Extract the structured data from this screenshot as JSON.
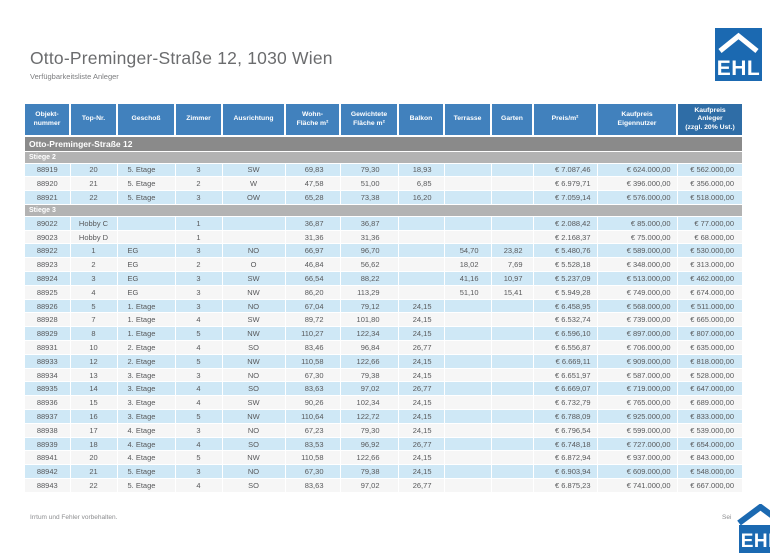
{
  "page": {
    "title": "Otto-Preminger-Straße 12, 1030 Wien",
    "subtitle": "Verfügbarkeitsliste Anleger",
    "footer_left": "Irrtum und Fehler vorbehalten.",
    "footer_right": "Sei",
    "logo_text": "EHL"
  },
  "colors": {
    "header_blue": "#4181bd",
    "header_blue_dark": "#2f6da6",
    "row_blue": "#cfe8f6",
    "row_plain": "#f6f6f6",
    "section_gray": "#8a8a8a",
    "group_gray": "#b3b3b3",
    "logo_blue": "#1b69b1",
    "text_gray": "#58595b"
  },
  "table": {
    "section_title": "Otto-Preminger-Straße 12",
    "columns": [
      [
        "Objekt-",
        "nummer"
      ],
      [
        "Top-Nr."
      ],
      [
        "Geschoß"
      ],
      [
        "Zimmer"
      ],
      [
        "Ausrichtung"
      ],
      [
        "Wohn-",
        "Fläche m²"
      ],
      [
        "Gewichtete",
        "Fläche m²"
      ],
      [
        "Balkon"
      ],
      [
        "Terrasse"
      ],
      [
        "Garten"
      ],
      [
        "Preis/m²"
      ],
      [
        "Kaufpreis",
        "Eigennutzer"
      ],
      [
        "Kaufpreis",
        "Anleger",
        "(zzgl. 20% Ust.)"
      ]
    ],
    "groups": [
      {
        "label": "Stiege 2",
        "rows": [
          [
            "88919",
            "20",
            "5. Etage",
            "3",
            "SW",
            "69,83",
            "79,30",
            "18,93",
            "",
            "",
            "€ 7.087,46",
            "€ 624.000,00",
            "€ 562.000,00"
          ],
          [
            "88920",
            "21",
            "5. Etage",
            "2",
            "W",
            "47,58",
            "51,00",
            "6,85",
            "",
            "",
            "€ 6.979,71",
            "€ 396.000,00",
            "€ 356.000,00"
          ],
          [
            "88921",
            "22",
            "5. Etage",
            "3",
            "OW",
            "65,28",
            "73,38",
            "16,20",
            "",
            "",
            "€ 7.059,14",
            "€ 576.000,00",
            "€ 518.000,00"
          ]
        ]
      },
      {
        "label": "Stiege 3",
        "rows": [
          [
            "89022",
            "Hobby C",
            "",
            "1",
            "",
            "36,87",
            "36,87",
            "",
            "",
            "",
            "€ 2.088,42",
            "€ 85.000,00",
            "€ 77.000,00"
          ],
          [
            "89023",
            "Hobby D",
            "",
            "1",
            "",
            "31,36",
            "31,36",
            "",
            "",
            "",
            "€ 2.168,37",
            "€ 75.000,00",
            "€ 68.000,00"
          ],
          [
            "88922",
            "1",
            "EG",
            "3",
            "NO",
            "66,97",
            "96,70",
            "",
            "54,70",
            "23,82",
            "€ 5.480,76",
            "€ 589.000,00",
            "€ 530.000,00"
          ],
          [
            "88923",
            "2",
            "EG",
            "2",
            "O",
            "46,84",
            "56,62",
            "",
            "18,02",
            "7,69",
            "€ 5.528,18",
            "€ 348.000,00",
            "€ 313.000,00"
          ],
          [
            "88924",
            "3",
            "EG",
            "3",
            "SW",
            "66,54",
            "88,22",
            "",
            "41,16",
            "10,97",
            "€ 5.237,09",
            "€ 513.000,00",
            "€ 462.000,00"
          ],
          [
            "88925",
            "4",
            "EG",
            "3",
            "NW",
            "86,20",
            "113,29",
            "",
            "51,10",
            "15,41",
            "€ 5.949,28",
            "€ 749.000,00",
            "€ 674.000,00"
          ],
          [
            "88926",
            "5",
            "1. Etage",
            "3",
            "NO",
            "67,04",
            "79,12",
            "24,15",
            "",
            "",
            "€ 6.458,95",
            "€ 568.000,00",
            "€ 511.000,00"
          ],
          [
            "88928",
            "7",
            "1. Etage",
            "4",
            "SW",
            "89,72",
            "101,80",
            "24,15",
            "",
            "",
            "€ 6.532,74",
            "€ 739.000,00",
            "€ 665.000,00"
          ],
          [
            "88929",
            "8",
            "1. Etage",
            "5",
            "NW",
            "110,27",
            "122,34",
            "24,15",
            "",
            "",
            "€ 6.596,10",
            "€ 897.000,00",
            "€ 807.000,00"
          ],
          [
            "88931",
            "10",
            "2. Etage",
            "4",
            "SO",
            "83,46",
            "96,84",
            "26,77",
            "",
            "",
            "€ 6.556,87",
            "€ 706.000,00",
            "€ 635.000,00"
          ],
          [
            "88933",
            "12",
            "2. Etage",
            "5",
            "NW",
            "110,58",
            "122,66",
            "24,15",
            "",
            "",
            "€ 6.669,11",
            "€ 909.000,00",
            "€ 818.000,00"
          ],
          [
            "88934",
            "13",
            "3. Etage",
            "3",
            "NO",
            "67,30",
            "79,38",
            "24,15",
            "",
            "",
            "€ 6.651,97",
            "€ 587.000,00",
            "€ 528.000,00"
          ],
          [
            "88935",
            "14",
            "3. Etage",
            "4",
            "SO",
            "83,63",
            "97,02",
            "26,77",
            "",
            "",
            "€ 6.669,07",
            "€ 719.000,00",
            "€ 647.000,00"
          ],
          [
            "88936",
            "15",
            "3. Etage",
            "4",
            "SW",
            "90,26",
            "102,34",
            "24,15",
            "",
            "",
            "€ 6.732,79",
            "€ 765.000,00",
            "€ 689.000,00"
          ],
          [
            "88937",
            "16",
            "3. Etage",
            "5",
            "NW",
            "110,64",
            "122,72",
            "24,15",
            "",
            "",
            "€ 6.788,09",
            "€ 925.000,00",
            "€ 833.000,00"
          ],
          [
            "88938",
            "17",
            "4. Etage",
            "3",
            "NO",
            "67,23",
            "79,30",
            "24,15",
            "",
            "",
            "€ 6.796,54",
            "€ 599.000,00",
            "€ 539.000,00"
          ],
          [
            "88939",
            "18",
            "4. Etage",
            "4",
            "SO",
            "83,53",
            "96,92",
            "26,77",
            "",
            "",
            "€ 6.748,18",
            "€ 727.000,00",
            "€ 654.000,00"
          ],
          [
            "88941",
            "20",
            "4. Etage",
            "5",
            "NW",
            "110,58",
            "122,66",
            "24,15",
            "",
            "",
            "€ 6.872,94",
            "€ 937.000,00",
            "€ 843.000,00"
          ],
          [
            "88942",
            "21",
            "5. Etage",
            "3",
            "NO",
            "67,30",
            "79,38",
            "24,15",
            "",
            "",
            "€ 6.903,94",
            "€ 609.000,00",
            "€ 548.000,00"
          ],
          [
            "88943",
            "22",
            "5. Etage",
            "4",
            "SO",
            "83,63",
            "97,02",
            "26,77",
            "",
            "",
            "€ 6.875,23",
            "€ 741.000,00",
            "€ 667.000,00"
          ]
        ]
      }
    ]
  }
}
